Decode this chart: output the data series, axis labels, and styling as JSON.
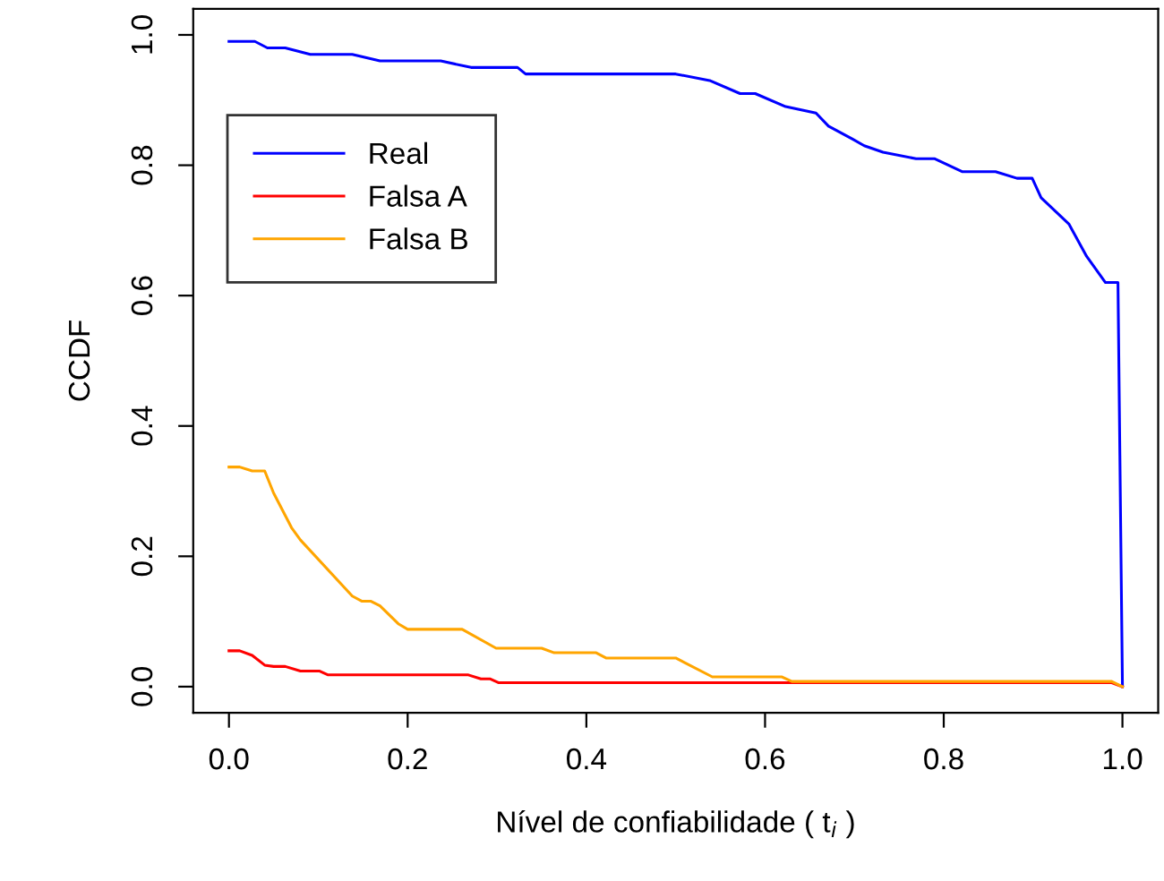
{
  "chart_data": {
    "type": "line",
    "xlabel": "Nível de confiabilidade ( t$_{i}$ )",
    "ylabel": "CCDF",
    "xlim": [
      -0.04,
      1.04
    ],
    "xticks": [
      {
        "value": 0,
        "label": "0.0"
      },
      0.2,
      0.4,
      0.6,
      0.8,
      {
        "value": 1,
        "label": "1.0"
      }
    ],
    "ylim": [
      -0.04,
      1.04
    ],
    "yticks": [
      {
        "value": 0,
        "label": "0.0"
      },
      0.2,
      0.4,
      0.6,
      0.8,
      {
        "value": 1,
        "label": "1.0"
      }
    ],
    "grid": false,
    "legend": "top left",
    "marker": "none",
    "line_style": "solid",
    "series": [
      {
        "name": "Real",
        "color": "#0000ff",
        "x": [
          0,
          0.029,
          0.043,
          0.063,
          0.091,
          0.138,
          0.169,
          0.237,
          0.271,
          0.323,
          0.332,
          0.5,
          0.538,
          0.572,
          0.589,
          0.623,
          0.657,
          0.671,
          0.698,
          0.711,
          0.732,
          0.769,
          0.79,
          0.821,
          0.858,
          0.882,
          0.899,
          0.909,
          0.94,
          0.96,
          0.981,
          0.995,
          1.0
        ],
        "values": [
          0.99,
          0.99,
          0.98,
          0.98,
          0.97,
          0.97,
          0.96,
          0.96,
          0.95,
          0.95,
          0.94,
          0.94,
          0.93,
          0.91,
          0.91,
          0.89,
          0.88,
          0.86,
          0.84,
          0.83,
          0.82,
          0.81,
          0.81,
          0.79,
          0.79,
          0.78,
          0.78,
          0.75,
          0.71,
          0.66,
          0.62,
          0.62,
          0.0
        ]
      },
      {
        "name": "Falsa A",
        "color": "#ff0000",
        "x": [
          0,
          0.012,
          0.026,
          0.04,
          0.05,
          0.063,
          0.08,
          0.101,
          0.111,
          0.268,
          0.282,
          0.292,
          0.302,
          0.988,
          1.0
        ],
        "values": [
          0.055,
          0.055,
          0.048,
          0.033,
          0.031,
          0.031,
          0.024,
          0.024,
          0.018,
          0.018,
          0.012,
          0.012,
          0.006,
          0.006,
          0.0
        ]
      },
      {
        "name": "Falsa B",
        "color": "#ffa500",
        "x": [
          0,
          0.012,
          0.026,
          0.04,
          0.05,
          0.07,
          0.08,
          0.138,
          0.149,
          0.159,
          0.169,
          0.19,
          0.2,
          0.261,
          0.299,
          0.35,
          0.364,
          0.411,
          0.422,
          0.5,
          0.541,
          0.619,
          0.63,
          0.988,
          1.0
        ],
        "values": [
          0.337,
          0.337,
          0.331,
          0.331,
          0.297,
          0.244,
          0.225,
          0.139,
          0.131,
          0.131,
          0.124,
          0.096,
          0.088,
          0.088,
          0.059,
          0.059,
          0.052,
          0.052,
          0.044,
          0.044,
          0.015,
          0.015,
          0.008,
          0.008,
          0.0
        ]
      }
    ]
  }
}
